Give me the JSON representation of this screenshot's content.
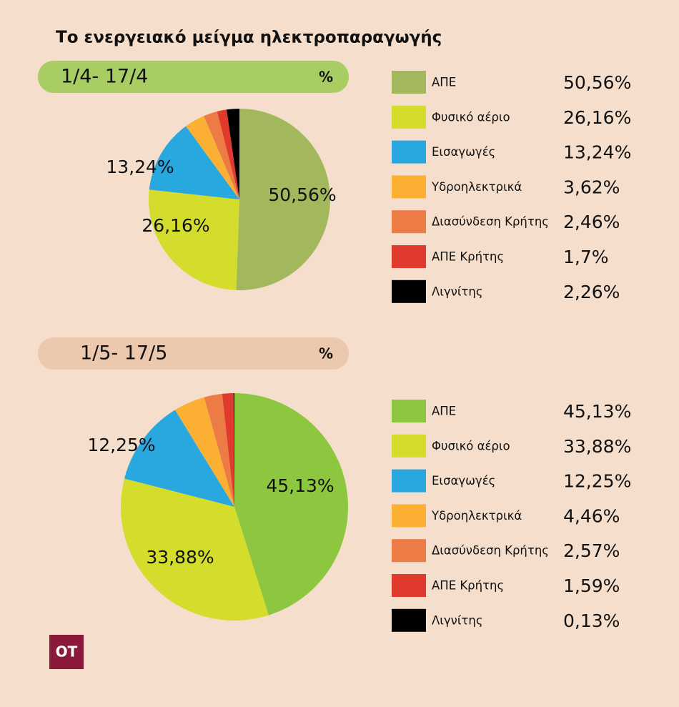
{
  "title": "Το ενεργειακό μείγμα ηλεκτροπαραγωγής",
  "logo": "OT",
  "chart_data": [
    {
      "type": "pie",
      "subtitle": "1/4- 17/4",
      "unit": "%",
      "categories": [
        "ΑΠΕ",
        "Φυσικό αέριο",
        "Εισαγωγές",
        "Υδροηλεκτρικά",
        "Διασύνδεση Κρήτης",
        "ΑΠΕ Κρήτης",
        "Λιγνίτης"
      ],
      "values": [
        50.56,
        26.16,
        13.24,
        3.62,
        2.46,
        1.7,
        2.26
      ],
      "value_labels": [
        "50,56%",
        "26,16%",
        "13,24%",
        "3,62%",
        "2,46%",
        "1,7%",
        "2,26%"
      ],
      "colors": [
        "#a3b85c",
        "#d4dc2c",
        "#29a8e0",
        "#fbb034",
        "#ec7b45",
        "#e03a2e",
        "#000000"
      ],
      "header_color": "#a8cd63"
    },
    {
      "type": "pie",
      "subtitle": "1/5- 17/5",
      "unit": "%",
      "categories": [
        "ΑΠΕ",
        "Φυσικό αέριο",
        "Εισαγωγές",
        "Υδροηλεκτρικά",
        "Διασύνδεση Κρήτης",
        "ΑΠΕ Κρήτης",
        "Λιγνίτης"
      ],
      "values": [
        45.13,
        33.88,
        12.25,
        4.46,
        2.57,
        1.59,
        0.13
      ],
      "value_labels": [
        "45,13%",
        "33,88%",
        "12,25%",
        "4,46%",
        "2,57%",
        "1,59%",
        "0,13%"
      ],
      "colors": [
        "#8dc63f",
        "#d4dc2c",
        "#29a8e0",
        "#fbb034",
        "#ec7b45",
        "#e03a2e",
        "#000000"
      ],
      "header_color": "#ecc9ae"
    }
  ]
}
